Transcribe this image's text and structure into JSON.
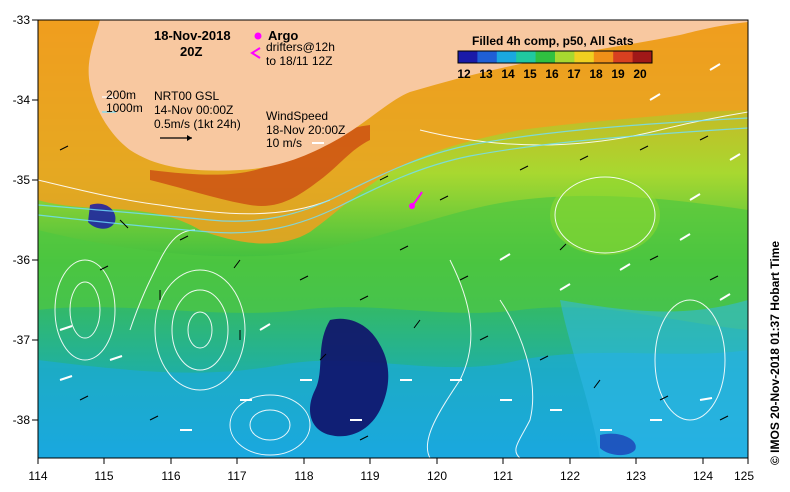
{
  "header": {
    "date": "18-Nov-2018",
    "hour": "20Z"
  },
  "legend": {
    "argo_label": "Argo",
    "drifters_line1": "drifters@12h",
    "drifters_line2": "to 18/11 12Z",
    "argo_color": "#ff00ff"
  },
  "colorbar": {
    "title": "Filled 4h comp, p50, All Sats",
    "labels": [
      "12",
      "13",
      "14",
      "15",
      "16",
      "17",
      "18",
      "19",
      "20"
    ],
    "colors": [
      "#1a1aa8",
      "#1f5fd6",
      "#1aa8e0",
      "#20c8a0",
      "#30c040",
      "#a8d830",
      "#f0d020",
      "#f09018",
      "#d84020",
      "#a01818"
    ]
  },
  "current_key": {
    "depth_200": "200m",
    "depth_1000": "1000m",
    "source": "NRT00 GSL",
    "time": "14-Nov 00:00Z",
    "scale": "0.5m/s (1kt 24h)"
  },
  "wind_key": {
    "title": "WindSpeed",
    "time": "18-Nov 20:00Z",
    "scale": "10 m/s"
  },
  "axes": {
    "x_ticks": [
      "114",
      "115",
      "116",
      "117",
      "118",
      "119",
      "120",
      "121",
      "122",
      "123",
      "124",
      "125"
    ],
    "y_ticks": [
      "-33",
      "-34",
      "-35",
      "-36",
      "-37",
      "-38"
    ]
  },
  "credit": "© IMOS 20-Nov-2018 01:37 Hobart Time",
  "colors": {
    "land": "#f8c8a0",
    "ocean_green": "#40c040",
    "ocean_blue": "#1aa8e0",
    "deep_blue": "#10106a",
    "warm_orange": "#f09018"
  }
}
